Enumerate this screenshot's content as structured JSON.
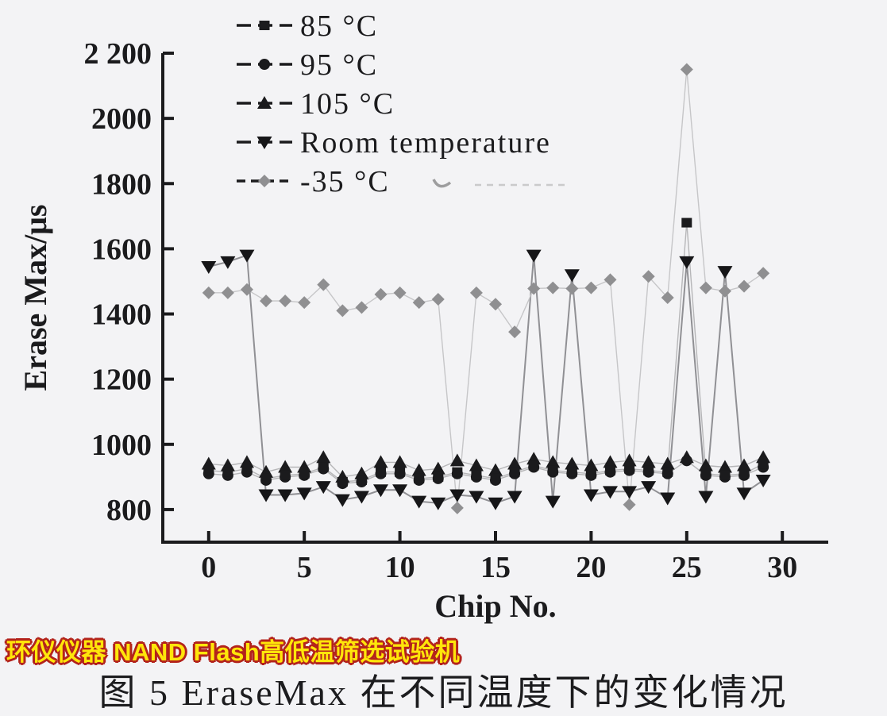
{
  "figure": {
    "banner": "环仪仪器 NAND Flash高低温筛选试验机",
    "banner_fill_color": "#ffe60a",
    "banner_outline_color": "#b3231c",
    "caption": "图 5 EraseMax 在不同温度下的变化情况",
    "background_color": "#f3f3f5",
    "axis_color": "#1b1b1d"
  },
  "chart_data": {
    "type": "line",
    "title": "",
    "xlabel": "Chip No.",
    "ylabel": "Erase Max/μs",
    "grid": false,
    "legend_position": "top-left-inside",
    "xlim": [
      -2.4,
      32.4
    ],
    "ylim": [
      700,
      2200
    ],
    "x": [
      0,
      1,
      2,
      3,
      4,
      5,
      6,
      7,
      8,
      9,
      10,
      11,
      12,
      13,
      14,
      15,
      16,
      17,
      18,
      19,
      20,
      21,
      22,
      23,
      24,
      25,
      26,
      27,
      28,
      29
    ],
    "xticks": [
      0,
      5,
      10,
      15,
      20,
      25,
      30
    ],
    "yticks": [
      {
        "value": 2200,
        "label": "2 200"
      },
      {
        "value": 2000,
        "label": "2000"
      },
      {
        "value": 1800,
        "label": "1800"
      },
      {
        "value": 1600,
        "label": "1600"
      },
      {
        "value": 1400,
        "label": "1400"
      },
      {
        "value": 1200,
        "label": "1200"
      },
      {
        "value": 1000,
        "label": "1000"
      },
      {
        "value": 800,
        "label": "800"
      }
    ],
    "series": [
      {
        "name": "85 °C",
        "marker": "square",
        "color": "#1b1b1d",
        "line_color": "#b6b6b8",
        "values": [
          920,
          915,
          925,
          895,
          905,
          910,
          930,
          885,
          890,
          915,
          915,
          895,
          900,
          915,
          905,
          895,
          915,
          935,
          920,
          915,
          910,
          920,
          925,
          920,
          915,
          1680,
          910,
          905,
          910,
          940
        ]
      },
      {
        "name": "95 °C",
        "marker": "circle",
        "color": "#1b1b1d",
        "line_color": "#b6b6b8",
        "values": [
          910,
          905,
          915,
          890,
          900,
          905,
          925,
          880,
          885,
          910,
          910,
          890,
          895,
          910,
          900,
          890,
          910,
          930,
          915,
          910,
          905,
          915,
          920,
          915,
          910,
          950,
          905,
          900,
          905,
          930
        ]
      },
      {
        "name": "105 °C",
        "marker": "triangle-up",
        "color": "#1b1b1d",
        "line_color": "#b6b6b8",
        "values": [
          940,
          935,
          945,
          915,
          930,
          930,
          960,
          900,
          910,
          945,
          945,
          920,
          925,
          950,
          935,
          920,
          940,
          955,
          945,
          940,
          935,
          945,
          950,
          945,
          940,
          960,
          935,
          930,
          935,
          960
        ]
      },
      {
        "name": "Room temperature",
        "marker": "triangle-down",
        "color": "#161618",
        "line_color": "#909094",
        "values": [
          1545,
          1560,
          1580,
          845,
          845,
          850,
          870,
          830,
          840,
          860,
          860,
          825,
          820,
          845,
          840,
          820,
          840,
          1580,
          825,
          1520,
          845,
          855,
          855,
          870,
          835,
          1560,
          840,
          1530,
          850,
          890
        ]
      },
      {
        "name": "-35 °C",
        "marker": "diamond",
        "color": "#8f8f91",
        "line_color": "#c6c6c8",
        "values": [
          1465,
          1465,
          1475,
          1440,
          1440,
          1435,
          1490,
          1410,
          1420,
          1460,
          1465,
          1435,
          1445,
          805,
          1465,
          1430,
          1345,
          1478,
          1480,
          1478,
          1480,
          1505,
          815,
          1515,
          1450,
          2150,
          1480,
          1470,
          1485,
          1525
        ]
      }
    ]
  }
}
